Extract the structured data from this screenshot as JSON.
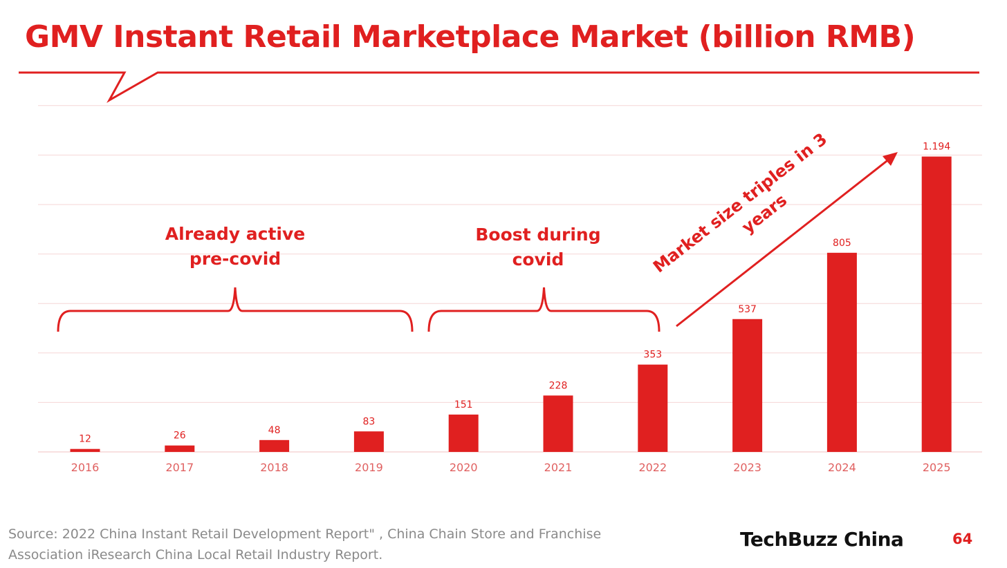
{
  "header": {
    "title": "GMV Instant Retail Marketplace Market (billion RMB)"
  },
  "chart_data": {
    "type": "bar",
    "categories": [
      "2016",
      "2017",
      "2018",
      "2019",
      "2020",
      "2021",
      "2022",
      "2023",
      "2024",
      "2025"
    ],
    "values": [
      12,
      26,
      48,
      83,
      151,
      228,
      353,
      537,
      805,
      1194
    ],
    "value_labels": [
      "12",
      "26",
      "48",
      "83",
      "151",
      "228",
      "353",
      "537",
      "805",
      "1.194"
    ],
    "title": "GMV Instant Retail Marketplace Market (billion RMB)",
    "xlabel": "",
    "ylabel": "",
    "ylim": [
      0,
      1400
    ],
    "grid": true,
    "annotations": [
      {
        "lines": [
          "Already active",
          "pre-covid"
        ],
        "span": [
          "2016",
          "2019"
        ]
      },
      {
        "lines": [
          "Boost during",
          "covid"
        ],
        "span": [
          "2020",
          "2022"
        ]
      },
      {
        "lines": [
          "Market size triples in 3",
          "years"
        ],
        "span": [
          "2022",
          "2025"
        ]
      }
    ]
  },
  "footer": {
    "source_line1": "Source: 2022 China Instant Retail Development Report\" , China Chain Store and Franchise",
    "source_line2": "Association  iResearch China Local Retail Industry Report.",
    "brand": "TechBuzz China",
    "page_number": "64"
  },
  "colors": {
    "accent": "#e02020",
    "grid": "#f6d6d6",
    "axis_label": "#e06060",
    "source_text": "#8a8a8a",
    "brand_text": "#111111"
  }
}
